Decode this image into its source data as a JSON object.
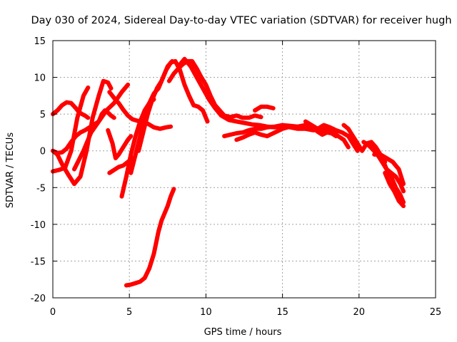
{
  "chart_data": {
    "type": "line",
    "title": "Day 030 of 2024, Sidereal Day-to-day VTEC variation (SDTVAR) for receiver hugh",
    "xlabel": "GPS time / hours",
    "ylabel": "SDTVAR / TECUs",
    "xlim": [
      0,
      25
    ],
    "ylim": [
      -20,
      15
    ],
    "xticks": [
      0,
      5,
      10,
      15,
      20,
      25
    ],
    "yticks": [
      -20,
      -15,
      -10,
      -5,
      0,
      5,
      10,
      15
    ],
    "xtick_labels": [
      "0",
      "5",
      "10",
      "15",
      "20",
      "25"
    ],
    "ytick_labels": [
      "-20",
      "-15",
      "-10",
      "-5",
      "0",
      "5",
      "10",
      "15"
    ],
    "grid": true,
    "color": "#ff0000",
    "series": [
      {
        "name": "s1",
        "x": [
          0.0,
          0.3,
          0.6,
          0.9,
          1.2,
          1.5,
          1.7,
          1.9,
          2.1,
          2.3
        ],
        "y": [
          5.0,
          5.5,
          6.2,
          6.6,
          6.5,
          5.8,
          5.3,
          5.0,
          4.8,
          4.5
        ]
      },
      {
        "name": "s2",
        "x": [
          0.0,
          0.3,
          0.6,
          1.0,
          1.4,
          1.8,
          2.2,
          2.6,
          3.0,
          3.3,
          3.6,
          3.8
        ],
        "y": [
          0.0,
          -0.5,
          -1.8,
          -3.2,
          -4.5,
          -3.5,
          0.0,
          4.5,
          7.5,
          9.5,
          9.3,
          8.5
        ]
      },
      {
        "name": "s3",
        "x": [
          0.0,
          0.4,
          0.8,
          1.2,
          1.6,
          2.0,
          2.3
        ],
        "y": [
          -2.8,
          -2.6,
          -2.3,
          0.0,
          4.5,
          7.5,
          8.6
        ]
      },
      {
        "name": "s4",
        "x": [
          0.0,
          0.3,
          0.6,
          0.9,
          1.2,
          1.5,
          1.8,
          2.1,
          2.4,
          2.7,
          3.0,
          3.2,
          3.4,
          3.6,
          3.8,
          4.0
        ],
        "y": [
          0.0,
          -0.3,
          -0.2,
          0.3,
          1.2,
          2.0,
          2.5,
          2.8,
          3.2,
          3.6,
          4.0,
          5.0,
          5.5,
          5.2,
          4.8,
          4.5
        ]
      },
      {
        "name": "s5",
        "x": [
          1.4,
          2.0,
          2.5,
          3.0,
          3.5,
          4.0,
          4.5,
          4.9
        ],
        "y": [
          -2.5,
          0.0,
          2.5,
          4.0,
          5.5,
          6.5,
          8.0,
          9.0
        ]
      },
      {
        "name": "s6",
        "x": [
          3.7,
          4.0,
          4.3,
          4.6,
          4.9,
          5.2,
          5.5,
          5.8,
          6.2,
          6.6,
          7.0,
          7.4,
          7.7
        ],
        "y": [
          8.0,
          7.2,
          6.5,
          5.6,
          4.8,
          4.3,
          4.1,
          4.0,
          3.7,
          3.2,
          3.0,
          3.2,
          3.3
        ]
      },
      {
        "name": "s7",
        "x": [
          3.6,
          3.9,
          4.1,
          4.3,
          4.6,
          4.9,
          5.1
        ],
        "y": [
          2.8,
          1.0,
          -1.0,
          -0.5,
          0.5,
          1.5,
          2.0
        ]
      },
      {
        "name": "s8",
        "x": [
          3.7,
          4.0,
          4.3,
          4.6,
          4.9,
          5.2
        ],
        "y": [
          -3.0,
          -2.6,
          -2.2,
          -2.0,
          -1.5,
          -1.0
        ]
      },
      {
        "name": "s9",
        "x": [
          4.5,
          4.8,
          5.1,
          5.4,
          5.7,
          6.0,
          6.3,
          6.6
        ],
        "y": [
          -6.2,
          -3.5,
          -0.5,
          2.0,
          4.0,
          5.5,
          6.5,
          7.0
        ]
      },
      {
        "name": "s10",
        "x": [
          5.1,
          5.4,
          5.7,
          6.0,
          6.3,
          6.6,
          6.9,
          7.2,
          7.5,
          7.8
        ],
        "y": [
          -3.0,
          -0.5,
          2.0,
          4.5,
          6.5,
          7.8,
          8.5,
          10.0,
          11.5,
          12.2
        ]
      },
      {
        "name": "s11",
        "x": [
          5.6,
          5.9,
          6.2,
          6.5,
          6.8,
          7.1,
          7.4,
          7.7,
          8.0,
          8.3,
          8.6,
          8.9,
          9.2,
          9.5,
          9.8,
          10.1
        ],
        "y": [
          0.0,
          2.5,
          5.0,
          7.0,
          8.5,
          9.5,
          11.0,
          12.0,
          12.2,
          11.0,
          9.0,
          7.5,
          6.2,
          6.0,
          5.5,
          4.0
        ]
      },
      {
        "name": "s12",
        "x": [
          4.8,
          5.1,
          5.4,
          5.7,
          6.0,
          6.3,
          6.6,
          6.9,
          7.1,
          7.3,
          7.5,
          7.7,
          7.9
        ],
        "y": [
          -18.3,
          -18.2,
          -18.0,
          -17.8,
          -17.3,
          -16.0,
          -14.0,
          -11.0,
          -9.5,
          -8.5,
          -7.5,
          -6.2,
          -5.2
        ]
      },
      {
        "name": "s13",
        "x": [
          7.6,
          7.9,
          8.2,
          8.5,
          8.8,
          9.1,
          9.4,
          9.7,
          10.0,
          10.3,
          10.6,
          10.9,
          11.2,
          11.6,
          12.0,
          12.4,
          12.8,
          13.2,
          13.6
        ],
        "y": [
          9.5,
          10.5,
          11.2,
          11.8,
          12.2,
          12.2,
          11.2,
          10.0,
          9.0,
          7.5,
          6.2,
          5.5,
          4.8,
          4.6,
          4.8,
          4.5,
          4.5,
          4.8,
          4.6
        ]
      },
      {
        "name": "s14",
        "x": [
          8.2,
          8.6,
          9.0,
          9.4,
          9.8,
          10.2,
          10.6,
          11.0,
          11.5,
          12.0,
          12.5,
          13.0,
          13.5,
          14.0,
          14.5,
          15.0,
          15.5,
          16.0,
          16.5,
          17.0,
          17.5,
          18.0,
          18.5,
          19.0,
          19.3
        ],
        "y": [
          11.5,
          12.5,
          11.5,
          10.0,
          8.5,
          7.0,
          5.8,
          4.8,
          4.2,
          4.0,
          3.8,
          3.6,
          3.5,
          3.3,
          3.2,
          3.3,
          3.2,
          3.0,
          3.0,
          2.8,
          2.8,
          2.7,
          2.2,
          1.5,
          0.5
        ]
      },
      {
        "name": "s15",
        "x": [
          11.2,
          11.6,
          12.0,
          12.4,
          12.8,
          13.2,
          13.6,
          14.0,
          14.5,
          15.0,
          15.5,
          16.0,
          16.5,
          17.0,
          17.5,
          18.0,
          18.5
        ],
        "y": [
          2.0,
          2.2,
          2.4,
          2.5,
          2.8,
          3.0,
          3.0,
          3.2,
          3.3,
          3.5,
          3.4,
          3.3,
          3.2,
          3.0,
          3.0,
          2.8,
          2.5
        ]
      },
      {
        "name": "s16",
        "x": [
          12.0,
          12.4,
          12.8,
          13.2,
          13.6,
          14.0,
          14.5,
          15.0,
          15.5,
          16.0,
          16.5,
          17.0,
          17.3,
          17.6,
          17.9,
          18.2,
          18.5
        ],
        "y": [
          1.5,
          1.8,
          2.2,
          2.5,
          2.2,
          2.0,
          2.5,
          3.0,
          3.3,
          3.3,
          3.5,
          3.2,
          2.6,
          2.2,
          2.5,
          2.4,
          2.0
        ]
      },
      {
        "name": "s17",
        "x": [
          13.2,
          13.6,
          14.0,
          14.4
        ],
        "y": [
          5.5,
          6.0,
          6.0,
          5.8
        ]
      },
      {
        "name": "s18",
        "x": [
          16.5,
          16.9,
          17.3,
          17.7,
          18.1,
          18.5,
          18.9,
          19.3,
          19.6,
          19.9
        ],
        "y": [
          4.0,
          3.5,
          3.0,
          3.5,
          3.2,
          2.8,
          2.5,
          2.0,
          1.0,
          0.0
        ]
      },
      {
        "name": "s19",
        "x": [
          19.0,
          19.3,
          19.6,
          19.9,
          20.2,
          20.5,
          20.8,
          21.1,
          21.4,
          21.7
        ],
        "y": [
          3.5,
          3.0,
          2.0,
          1.0,
          0.0,
          1.0,
          1.2,
          0.5,
          -0.5,
          -1.5
        ]
      },
      {
        "name": "s20",
        "x": [
          20.3,
          20.6,
          20.9,
          21.2,
          21.5,
          21.8,
          22.1,
          22.4,
          22.7,
          22.9
        ],
        "y": [
          1.2,
          0.8,
          0.2,
          -0.5,
          -1.5,
          -2.5,
          -3.0,
          -3.5,
          -4.5,
          -5.5
        ]
      },
      {
        "name": "s21",
        "x": [
          21.5,
          21.8,
          22.1,
          22.4,
          22.7,
          22.9
        ],
        "y": [
          -1.0,
          -2.5,
          -3.5,
          -5.0,
          -6.0,
          -7.0
        ]
      },
      {
        "name": "s22",
        "x": [
          21.7,
          22.0,
          22.3,
          22.6,
          22.9
        ],
        "y": [
          -3.0,
          -4.5,
          -5.5,
          -6.8,
          -7.5
        ]
      },
      {
        "name": "s23",
        "x": [
          21.0,
          21.4,
          21.8,
          22.2,
          22.6,
          22.9
        ],
        "y": [
          -0.5,
          -0.5,
          -1.0,
          -1.5,
          -2.5,
          -4.5
        ]
      }
    ]
  }
}
